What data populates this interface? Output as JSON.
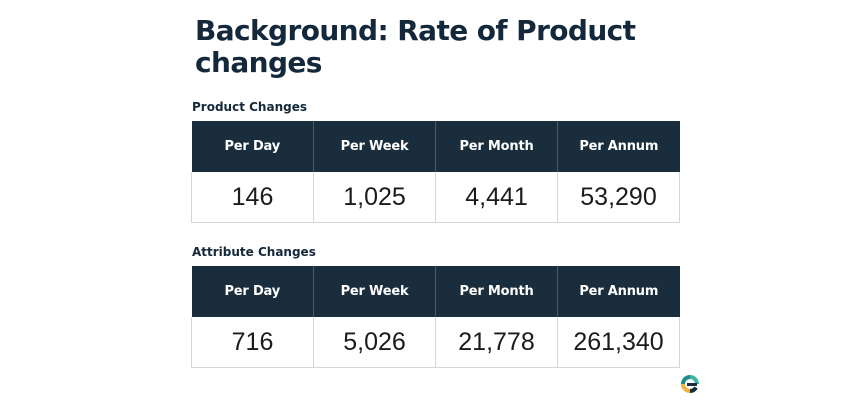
{
  "slide": {
    "title": "Background: Rate of Product changes"
  },
  "product_changes": {
    "label": "Product Changes",
    "headers": [
      "Per Day",
      "Per Week",
      "Per Month",
      "Per Annum"
    ],
    "values": [
      "146",
      "1,025",
      "4,441",
      "53,290"
    ]
  },
  "attribute_changes": {
    "label": "Attribute Changes",
    "headers": [
      "Per Day",
      "Per Week",
      "Per Month",
      "Per Annum"
    ],
    "values": [
      "716",
      "5,026",
      "21,778",
      "261,340"
    ]
  },
  "logo": {
    "icon": "brand-logo-icon",
    "colors": [
      "#1f8b91",
      "#3bb5a4",
      "#f2b23e",
      "#1a2d3c"
    ]
  }
}
